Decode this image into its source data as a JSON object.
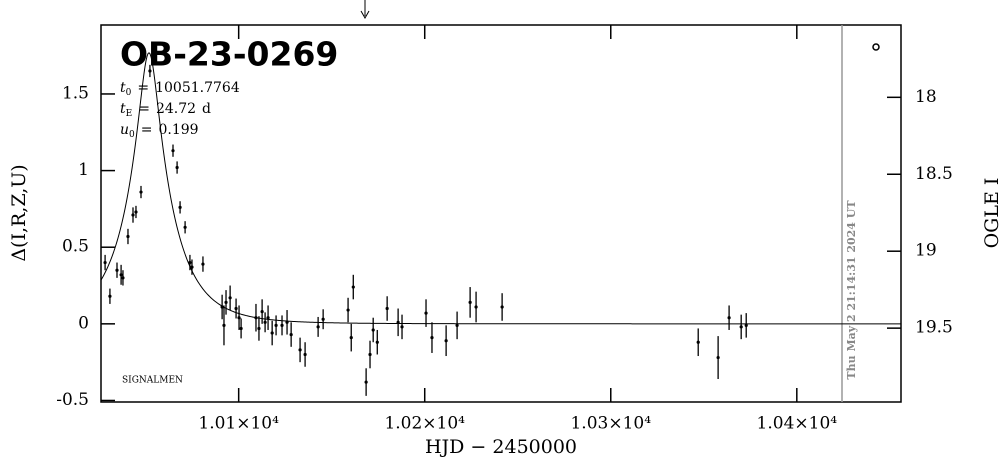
{
  "chart_data": {
    "type": "scatter",
    "title": "OB-23-0269",
    "parameters": [
      {
        "symbol": "t",
        "subscript": "0",
        "relation": "=",
        "value": 10051.7764
      },
      {
        "symbol": "t",
        "subscript": "E",
        "relation": "=",
        "value": 24.72,
        "unit": "d"
      },
      {
        "symbol": "u",
        "subscript": "0",
        "relation": "=",
        "value": 0.199
      }
    ],
    "watermark": "SIGNALMEN",
    "timestamp": "Thu May  2 21:14:31 2024 UT",
    "xlabel": "HJD − 2450000",
    "ylabel": "Δ(I,R,Z,U)",
    "y2label": "OGLE I",
    "xlim": [
      10026,
      10456
    ],
    "ylim": [
      -0.51,
      1.95
    ],
    "y2lim": [
      19.98,
      17.53
    ],
    "xticks": [
      {
        "value": 10100,
        "label": "1.01×10⁴"
      },
      {
        "value": 10200,
        "label": "1.02×10⁴"
      },
      {
        "value": 10300,
        "label": "1.03×10⁴"
      },
      {
        "value": 10400,
        "label": "1.04×10⁴"
      }
    ],
    "yticks": [
      -0.5,
      0,
      0.5,
      1,
      1.5
    ],
    "y2ticks": [
      18,
      18.5,
      19,
      19.5
    ],
    "series": [
      {
        "color": "#000000",
        "x": [
          10028.2,
          10030.8,
          10034.6,
          10036.8,
          10037.8,
          10040.5,
          10043.2,
          10044.8,
          10047.5,
          10052.3,
          10064.7,
          10066.9,
          10068.5,
          10071.2,
          10073.8,
          10074.9,
          10080.8,
          10091.1,
          10092.1,
          10093.2,
          10095.4,
          10098.6,
          10100.2,
          10101.3,
          10109.3,
          10110.9,
          10112.6,
          10114.2,
          10115.8,
          10118.0,
          10120.1,
          10123.3,
          10126.0,
          10128.2,
          10133.0,
          10135.7,
          10142.7,
          10145.4,
          10158.8,
          10160.5,
          10161.6,
          10168.5,
          10170.6,
          10172.3,
          10174.5,
          10179.8,
          10185.7,
          10187.8,
          10200.7,
          10203.9,
          10211.5,
          10217.4,
          10224.4,
          10227.6,
          10241.6,
          10347.0,
          10357.7,
          10363.6,
          10370.1,
          10372.8
        ],
        "values": [
          0.4,
          0.18,
          0.35,
          0.32,
          0.3,
          0.57,
          0.71,
          0.73,
          0.86,
          1.65,
          1.13,
          1.02,
          0.76,
          0.63,
          0.4,
          0.37,
          0.39,
          0.11,
          -0.01,
          0.14,
          0.17,
          0.1,
          0.04,
          -0.03,
          0.04,
          -0.03,
          0.08,
          0.01,
          0.04,
          -0.06,
          -0.01,
          -0.01,
          0.01,
          -0.07,
          -0.17,
          -0.2,
          -0.02,
          0.03,
          0.09,
          -0.09,
          0.24,
          -0.38,
          -0.2,
          -0.04,
          -0.12,
          0.1,
          0.01,
          -0.02,
          0.07,
          -0.09,
          -0.11,
          -0.01,
          0.14,
          0.11,
          0.11,
          -0.12,
          -0.22,
          0.04,
          -0.02,
          -0.01
        ],
        "errors": [
          0.05,
          0.05,
          0.05,
          0.065,
          0.05,
          0.05,
          0.05,
          0.04,
          0.04,
          0.04,
          0.04,
          0.04,
          0.04,
          0.04,
          0.05,
          0.05,
          0.05,
          0.08,
          0.13,
          0.08,
          0.08,
          0.065,
          0.08,
          0.065,
          0.09,
          0.08,
          0.08,
          0.065,
          0.08,
          0.08,
          0.065,
          0.065,
          0.08,
          0.08,
          0.08,
          0.08,
          0.065,
          0.065,
          0.08,
          0.09,
          0.08,
          0.09,
          0.09,
          0.08,
          0.08,
          0.08,
          0.09,
          0.08,
          0.09,
          0.1,
          0.1,
          0.09,
          0.1,
          0.1,
          0.09,
          0.09,
          0.14,
          0.08,
          0.08,
          0.08
        ]
      }
    ]
  }
}
